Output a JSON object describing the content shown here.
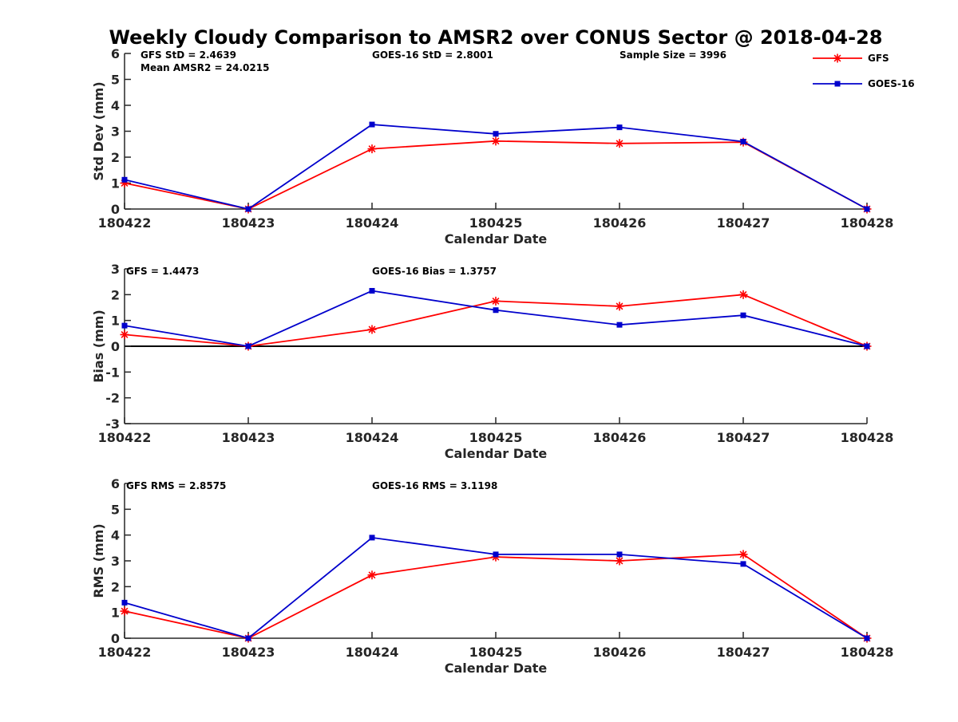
{
  "title": "Weekly Cloudy Comparison to AMSR2 over CONUS Sector @ 2018-04-28",
  "colors": {
    "GFS": "#ff0000",
    "GOES-16": "#0000cc"
  },
  "legend": {
    "placement": "top-right",
    "entries": [
      {
        "name": "GFS",
        "marker": "asterisk"
      },
      {
        "name": "GOES-16",
        "marker": "square"
      }
    ]
  },
  "chart_data": [
    {
      "type": "line",
      "xlabel": "Calendar Date",
      "ylabel": "Std Dev (mm)",
      "x": [
        "180422",
        "180423",
        "180424",
        "180425",
        "180426",
        "180427",
        "180428"
      ],
      "ylim": [
        0,
        6
      ],
      "yticks": [
        0,
        1,
        2,
        3,
        4,
        5,
        6
      ],
      "zero_line": false,
      "series": [
        {
          "name": "GFS",
          "values": [
            1.0,
            0.0,
            2.32,
            2.62,
            2.53,
            2.58,
            0.0
          ]
        },
        {
          "name": "GOES-16",
          "values": [
            1.13,
            0.0,
            3.26,
            2.9,
            3.15,
            2.6,
            0.0
          ]
        }
      ],
      "annotations": [
        "GFS StD = 2.4639",
        "Mean AMSR2 = 24.0215",
        "GOES-16 StD = 2.8001",
        "Sample Size = 3996"
      ]
    },
    {
      "type": "line",
      "xlabel": "Calendar Date",
      "ylabel": "Bias (mm)",
      "x": [
        "180422",
        "180423",
        "180424",
        "180425",
        "180426",
        "180427",
        "180428"
      ],
      "ylim": [
        -3,
        3
      ],
      "yticks": [
        -3,
        -2,
        -1,
        0,
        1,
        2,
        3
      ],
      "zero_line": true,
      "series": [
        {
          "name": "GFS",
          "values": [
            0.45,
            0.0,
            0.65,
            1.75,
            1.55,
            2.0,
            0.0
          ]
        },
        {
          "name": "GOES-16",
          "values": [
            0.8,
            0.0,
            2.15,
            1.4,
            0.83,
            1.2,
            0.0
          ]
        }
      ],
      "annotations": [
        "GFS = 1.4473",
        "GOES-16 Bias  = 1.3757"
      ]
    },
    {
      "type": "line",
      "xlabel": "Calendar Date",
      "ylabel": "RMS (mm)",
      "x": [
        "180422",
        "180423",
        "180424",
        "180425",
        "180426",
        "180427",
        "180428"
      ],
      "ylim": [
        0,
        6
      ],
      "yticks": [
        0,
        1,
        2,
        3,
        4,
        5,
        6
      ],
      "zero_line": false,
      "series": [
        {
          "name": "GFS",
          "values": [
            1.05,
            0.0,
            2.45,
            3.15,
            3.0,
            3.25,
            0.0
          ]
        },
        {
          "name": "GOES-16",
          "values": [
            1.38,
            0.0,
            3.9,
            3.25,
            3.25,
            2.88,
            0.0
          ]
        }
      ],
      "annotations": [
        "GFS RMS = 2.8575",
        "GOES-16 RMS = 3.1198"
      ]
    }
  ]
}
